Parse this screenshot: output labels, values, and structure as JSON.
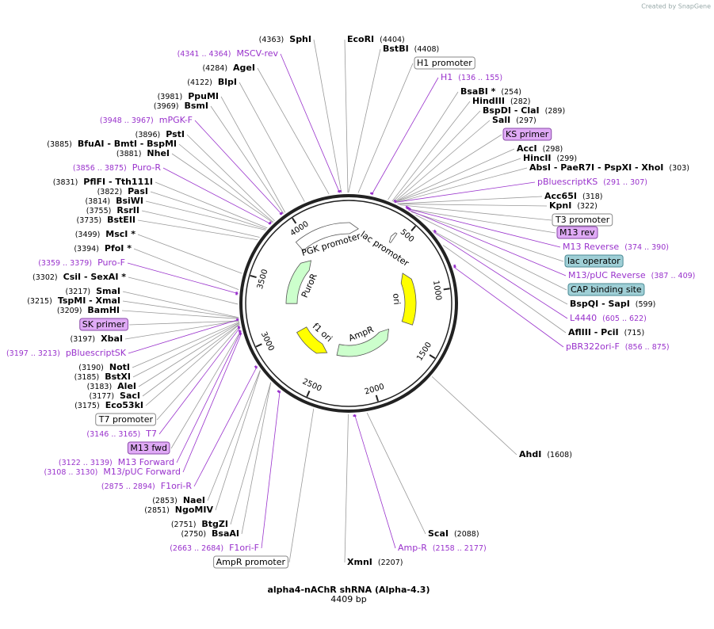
{
  "watermark": "Created by SnapGene",
  "map": {
    "title": "alpha4-nAChR shRNA (Alpha-4.3)",
    "length_label": "4409 bp",
    "length": 4409,
    "ticks": [
      500,
      1000,
      1500,
      2000,
      2500,
      3000,
      3500,
      4000
    ],
    "features": [
      {
        "name": "PGK promoter",
        "start": 3910,
        "end": 90,
        "dir": 1,
        "color": "#ffffff"
      },
      {
        "name": "lac promoter",
        "start": 395,
        "end": 425,
        "dir": -1,
        "color": "#ffffff"
      },
      {
        "name": "ori",
        "start": 744,
        "end": 1332,
        "dir": -1,
        "color": "#ffff00"
      },
      {
        "name": "AmpR",
        "start": 1503,
        "end": 2363,
        "dir": -1,
        "color": "#ccffcc"
      },
      {
        "name": "f1 ori",
        "start": 2494,
        "end": 2949,
        "dir": -1,
        "color": "#ffff00"
      },
      {
        "name": "PuroR",
        "start": 3305,
        "end": 3904,
        "dir": 1,
        "color": "#ccffcc"
      }
    ],
    "labels": [
      {
        "kind": "site",
        "names": "SphI",
        "pos_label": "(4363)",
        "site": 4363
      },
      {
        "kind": "site",
        "names": "EcoRI",
        "pos_label": "(4404)",
        "site": 4404
      },
      {
        "kind": "site",
        "names": "BstBI",
        "pos_label": "(4408)",
        "site": 4408
      },
      {
        "kind": "box",
        "name": "H1 promoter",
        "style": "white",
        "site": 60
      },
      {
        "kind": "feature",
        "name": "MSCV-rev",
        "range_label": "(4341 .. 4364)",
        "start": 4341,
        "end": 4364
      },
      {
        "kind": "site",
        "names": "AgeI",
        "pos_label": "(4284)",
        "site": 4284
      },
      {
        "kind": "feature",
        "name": "H1",
        "range_label": "(136 .. 155)",
        "start": 136,
        "end": 155
      },
      {
        "kind": "site",
        "names": "BlpI",
        "pos_label": "(4122)",
        "site": 4122
      },
      {
        "kind": "site",
        "names": "BsaBI *",
        "pos_label": "(254)",
        "site": 254
      },
      {
        "kind": "site",
        "names": "PpuMI",
        "pos_label": "(3981)",
        "site": 3981
      },
      {
        "kind": "site",
        "names": "HindIII",
        "pos_label": "(282)",
        "site": 282
      },
      {
        "kind": "site",
        "names": "BsmI",
        "pos_label": "(3969)",
        "site": 3969
      },
      {
        "kind": "site",
        "names": "BspDI - ClaI",
        "pos_label": "(289)",
        "site": 289
      },
      {
        "kind": "feature",
        "name": "mPGK-F",
        "range_label": "(3948 .. 3967)",
        "start": 3948,
        "end": 3967
      },
      {
        "kind": "site",
        "names": "SalI",
        "pos_label": "(297)",
        "site": 297
      },
      {
        "kind": "site",
        "names": "PstI",
        "pos_label": "(3896)",
        "site": 3896
      },
      {
        "kind": "box",
        "name": "KS primer",
        "style": "purple",
        "site": 300
      },
      {
        "kind": "site",
        "names": "BfuAI - BmtI - BspMI",
        "pos_label": "(3885)",
        "site": 3885
      },
      {
        "kind": "site",
        "names": "AccI",
        "pos_label": "(298)",
        "site": 298
      },
      {
        "kind": "site",
        "names": "NheI",
        "pos_label": "(3881)",
        "site": 3881
      },
      {
        "kind": "site",
        "names": "HincII",
        "pos_label": "(299)",
        "site": 299
      },
      {
        "kind": "feature",
        "name": "Puro-R",
        "range_label": "(3856 .. 3875)",
        "start": 3856,
        "end": 3875
      },
      {
        "kind": "site",
        "names": "AbsI - PaeR7I - PspXI - XhoI",
        "pos_label": "(303)",
        "site": 303
      },
      {
        "kind": "site",
        "names": "PflFI - Tth111I",
        "pos_label": "(3831)",
        "site": 3831
      },
      {
        "kind": "feature",
        "name": "pBluescriptKS",
        "range_label": "(291 .. 307)",
        "start": 291,
        "end": 307
      },
      {
        "kind": "site",
        "names": "PasI",
        "pos_label": "(3822)",
        "site": 3822
      },
      {
        "kind": "site",
        "names": "Acc65I",
        "pos_label": "(318)",
        "site": 318
      },
      {
        "kind": "site",
        "names": "BsiWI",
        "pos_label": "(3814)",
        "site": 3814
      },
      {
        "kind": "site",
        "names": "KpnI",
        "pos_label": "(322)",
        "site": 322
      },
      {
        "kind": "site",
        "names": "RsrII",
        "pos_label": "(3755)",
        "site": 3755
      },
      {
        "kind": "box",
        "name": "T3 promoter",
        "style": "white",
        "site": 335
      },
      {
        "kind": "site",
        "names": "BstEII",
        "pos_label": "(3735)",
        "site": 3735
      },
      {
        "kind": "box",
        "name": "M13 rev",
        "style": "purple",
        "site": 385
      },
      {
        "kind": "site",
        "names": "MscI *",
        "pos_label": "(3499)",
        "site": 3499
      },
      {
        "kind": "feature",
        "name": "M13 Reverse",
        "range_label": "(374 .. 390)",
        "start": 374,
        "end": 390
      },
      {
        "kind": "site",
        "names": "PfoI *",
        "pos_label": "(3394)",
        "site": 3394
      },
      {
        "kind": "box",
        "name": "lac operator",
        "style": "teal",
        "site": 420
      },
      {
        "kind": "feature",
        "name": "Puro-F",
        "range_label": "(3359 .. 3379)",
        "start": 3359,
        "end": 3379
      },
      {
        "kind": "feature",
        "name": "M13/pUC Reverse",
        "range_label": "(387 .. 409)",
        "start": 387,
        "end": 409
      },
      {
        "kind": "site",
        "names": "CsiI - SexAI *",
        "pos_label": "(3302)",
        "site": 3302
      },
      {
        "kind": "box",
        "name": "CAP binding site",
        "style": "teal",
        "site": 455
      },
      {
        "kind": "site",
        "names": "SmaI",
        "pos_label": "(3217)",
        "site": 3217
      },
      {
        "kind": "site",
        "names": "BspQI - SapI",
        "pos_label": "(599)",
        "site": 599
      },
      {
        "kind": "site",
        "names": "TspMI - XmaI",
        "pos_label": "(3215)",
        "site": 3215
      },
      {
        "kind": "site",
        "names": "BamHI",
        "pos_label": "(3209)",
        "site": 3209
      },
      {
        "kind": "feature",
        "name": "L4440",
        "range_label": "(605 .. 622)",
        "start": 605,
        "end": 622
      },
      {
        "kind": "box",
        "name": "SK primer",
        "style": "purple",
        "site": 3195
      },
      {
        "kind": "site",
        "names": "AflIII - PciI",
        "pos_label": "(715)",
        "site": 715
      },
      {
        "kind": "site",
        "names": "XbaI",
        "pos_label": "(3197)",
        "site": 3197
      },
      {
        "kind": "feature",
        "name": "pBR322ori-F",
        "range_label": "(856 .. 875)",
        "start": 856,
        "end": 875
      },
      {
        "kind": "feature",
        "name": "pBluescriptSK",
        "range_label": "(3197 .. 3213)",
        "start": 3197,
        "end": 3213
      },
      {
        "kind": "site",
        "names": "NotI",
        "pos_label": "(3190)",
        "site": 3190
      },
      {
        "kind": "site",
        "names": "BstXI",
        "pos_label": "(3185)",
        "site": 3185
      },
      {
        "kind": "site",
        "names": "AleI",
        "pos_label": "(3183)",
        "site": 3183
      },
      {
        "kind": "site",
        "names": "SacI",
        "pos_label": "(3177)",
        "site": 3177
      },
      {
        "kind": "site",
        "names": "Eco53kI",
        "pos_label": "(3175)",
        "site": 3175
      },
      {
        "kind": "box",
        "name": "T7 promoter",
        "style": "white",
        "site": 3165
      },
      {
        "kind": "feature",
        "name": "T7",
        "range_label": "(3146 .. 3165)",
        "start": 3146,
        "end": 3165
      },
      {
        "kind": "box",
        "name": "M13 fwd",
        "style": "purple",
        "site": 3135
      },
      {
        "kind": "site",
        "names": "AhdI",
        "pos_label": "(1608)",
        "site": 1608
      },
      {
        "kind": "feature",
        "name": "M13 Forward",
        "range_label": "(3122 .. 3139)",
        "start": 3122,
        "end": 3139
      },
      {
        "kind": "feature",
        "name": "M13/pUC Forward",
        "range_label": "(3108 .. 3130)",
        "start": 3108,
        "end": 3130
      },
      {
        "kind": "feature",
        "name": "F1ori-R",
        "range_label": "(2875 .. 2894)",
        "start": 2875,
        "end": 2894
      },
      {
        "kind": "site",
        "names": "NaeI",
        "pos_label": "(2853)",
        "site": 2853
      },
      {
        "kind": "site",
        "names": "NgoMIV",
        "pos_label": "(2851)",
        "site": 2851
      },
      {
        "kind": "site",
        "names": "BtgZI",
        "pos_label": "(2751)",
        "site": 2751
      },
      {
        "kind": "site",
        "names": "BsaAI",
        "pos_label": "(2750)",
        "site": 2750
      },
      {
        "kind": "site",
        "names": "ScaI",
        "pos_label": "(2088)",
        "site": 2088
      },
      {
        "kind": "feature",
        "name": "F1ori-F",
        "range_label": "(2663 .. 2684)",
        "start": 2663,
        "end": 2684
      },
      {
        "kind": "feature",
        "name": "Amp-R",
        "range_label": "(2158 .. 2177)",
        "start": 2158,
        "end": 2177
      },
      {
        "kind": "box",
        "name": "AmpR promoter",
        "style": "white",
        "site": 2430
      },
      {
        "kind": "site",
        "names": "XmnI",
        "pos_label": "(2207)",
        "site": 2207
      }
    ]
  }
}
